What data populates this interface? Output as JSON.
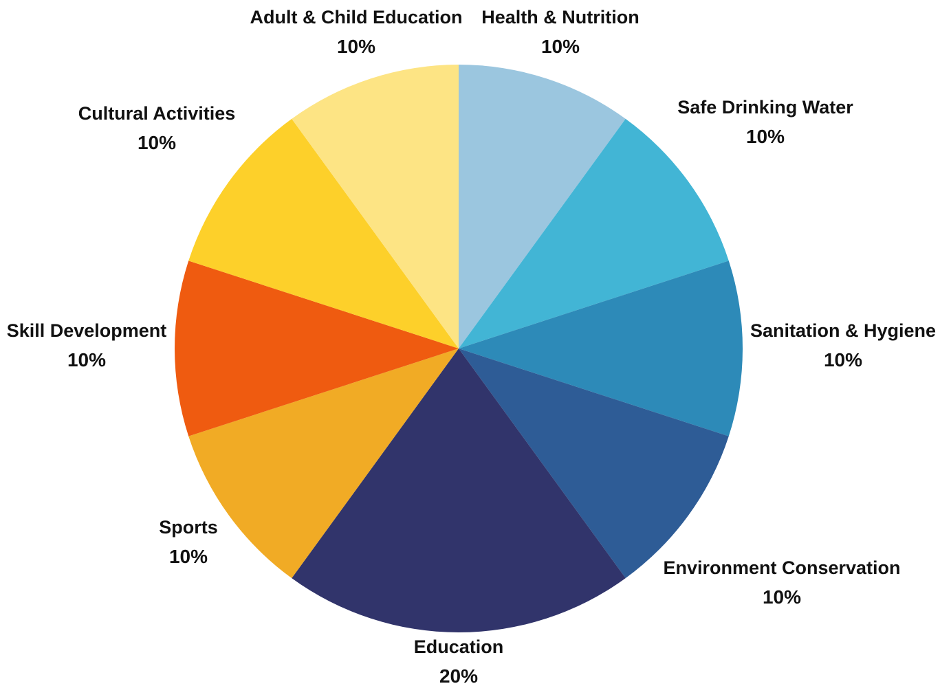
{
  "chart_data": {
    "type": "pie",
    "title": "",
    "start_angle_deg": 0,
    "direction": "clockwise",
    "slices": [
      {
        "label": "Health & Nutrition",
        "value": 10,
        "value_label": "10%",
        "color": "#9BC6DF"
      },
      {
        "label": "Safe Drinking Water",
        "value": 10,
        "value_label": "10%",
        "color": "#42B5D5"
      },
      {
        "label": "Sanitation & Hygiene",
        "value": 10,
        "value_label": "10%",
        "color": "#2D8AB8"
      },
      {
        "label": "Environment Conservation",
        "value": 10,
        "value_label": "10%",
        "color": "#2E5C96"
      },
      {
        "label": "Education",
        "value": 20,
        "value_label": "20%",
        "color": "#31346B"
      },
      {
        "label": "Sports",
        "value": 10,
        "value_label": "10%",
        "color": "#F1AB25"
      },
      {
        "label": "Skill Development",
        "value": 10,
        "value_label": "10%",
        "color": "#EF5B10"
      },
      {
        "label": "Cultural Activities",
        "value": 10,
        "value_label": "10%",
        "color": "#FDD02A"
      },
      {
        "label": "Adult & Child Education",
        "value": 10,
        "value_label": "10%",
        "color": "#FDE484"
      }
    ]
  }
}
